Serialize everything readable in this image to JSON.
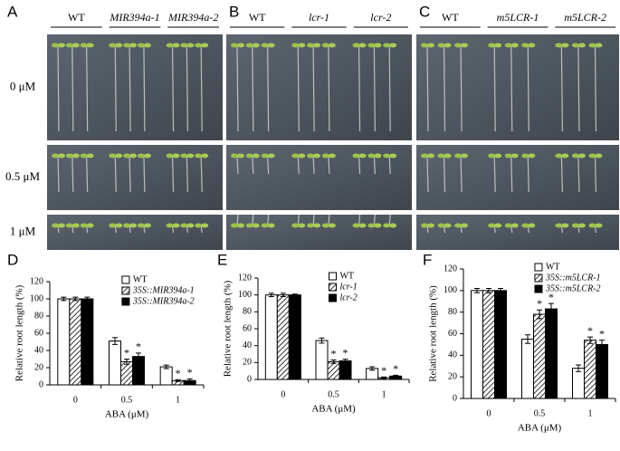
{
  "photos": {
    "rows": [
      "0 μM",
      "0.5 μM",
      "1 μM"
    ],
    "panels": [
      {
        "label": "A",
        "groups": [
          "WT",
          "MIR394a-1",
          "MIR394a-2"
        ]
      },
      {
        "label": "B",
        "groups": [
          "WT",
          "lcr-1",
          "lcr-2"
        ]
      },
      {
        "label": "C",
        "groups": [
          "WT",
          "m5LCR-1",
          "m5LCR-2"
        ]
      }
    ]
  },
  "chart_data": [
    {
      "type": "bar",
      "panel": "D",
      "ylabel": "Relative root length (%)",
      "xlabel": "ABA (μM)",
      "categories": [
        "0",
        "0.5",
        "1"
      ],
      "ylim": [
        0,
        120
      ],
      "yticks": [
        0,
        20,
        40,
        60,
        80,
        100,
        120
      ],
      "series": [
        {
          "name": "WT",
          "pattern": "white",
          "values": [
            100,
            51,
            21
          ],
          "errors": [
            2,
            4,
            2
          ],
          "stars": [
            null,
            null,
            null
          ]
        },
        {
          "name": "35S::MIR394a-1",
          "pattern": "hatch",
          "values": [
            100,
            27,
            5
          ],
          "errors": [
            2,
            3,
            1
          ],
          "stars": [
            null,
            "*",
            "*"
          ]
        },
        {
          "name": "35S::MIR394a-2",
          "pattern": "black",
          "values": [
            100,
            33,
            5
          ],
          "errors": [
            2,
            4,
            2
          ],
          "stars": [
            null,
            "*",
            "*"
          ]
        }
      ]
    },
    {
      "type": "bar",
      "panel": "E",
      "ylabel": "Relative root length (%)",
      "xlabel": "ABA (μM)",
      "categories": [
        "0",
        "0.5",
        "1"
      ],
      "ylim": [
        0,
        120
      ],
      "yticks": [
        0,
        20,
        40,
        60,
        80,
        100,
        120
      ],
      "series": [
        {
          "name": "WT",
          "pattern": "white",
          "values": [
            100,
            46,
            13
          ],
          "errors": [
            2,
            3,
            2
          ],
          "stars": [
            null,
            null,
            null
          ]
        },
        {
          "name": "lcr-1",
          "pattern": "hatch",
          "values": [
            100,
            21,
            2
          ],
          "errors": [
            2,
            2,
            1
          ],
          "stars": [
            null,
            "*",
            "*"
          ]
        },
        {
          "name": "lcr-2",
          "pattern": "black",
          "values": [
            100,
            22,
            4
          ],
          "errors": [
            1,
            2,
            1
          ],
          "stars": [
            null,
            "*",
            "*"
          ]
        }
      ]
    },
    {
      "type": "bar",
      "panel": "F",
      "ylabel": "Relative root length (%)",
      "xlabel": "ABA (μM)",
      "categories": [
        "0",
        "0.5",
        "1"
      ],
      "ylim": [
        0,
        120
      ],
      "yticks": [
        0,
        20,
        40,
        60,
        80,
        100,
        120
      ],
      "series": [
        {
          "name": "WT",
          "pattern": "white",
          "values": [
            100,
            55,
            28
          ],
          "errors": [
            2,
            4,
            3
          ],
          "stars": [
            null,
            null,
            null
          ]
        },
        {
          "name": "35S::m5LCR-1",
          "pattern": "hatch",
          "values": [
            100,
            78,
            54
          ],
          "errors": [
            2,
            4,
            3
          ],
          "stars": [
            null,
            "*",
            "*"
          ]
        },
        {
          "name": "35S::m5LCR-2",
          "pattern": "black",
          "values": [
            100,
            83,
            50
          ],
          "errors": [
            2,
            5,
            4
          ],
          "stars": [
            null,
            "*",
            "*"
          ]
        }
      ]
    }
  ]
}
